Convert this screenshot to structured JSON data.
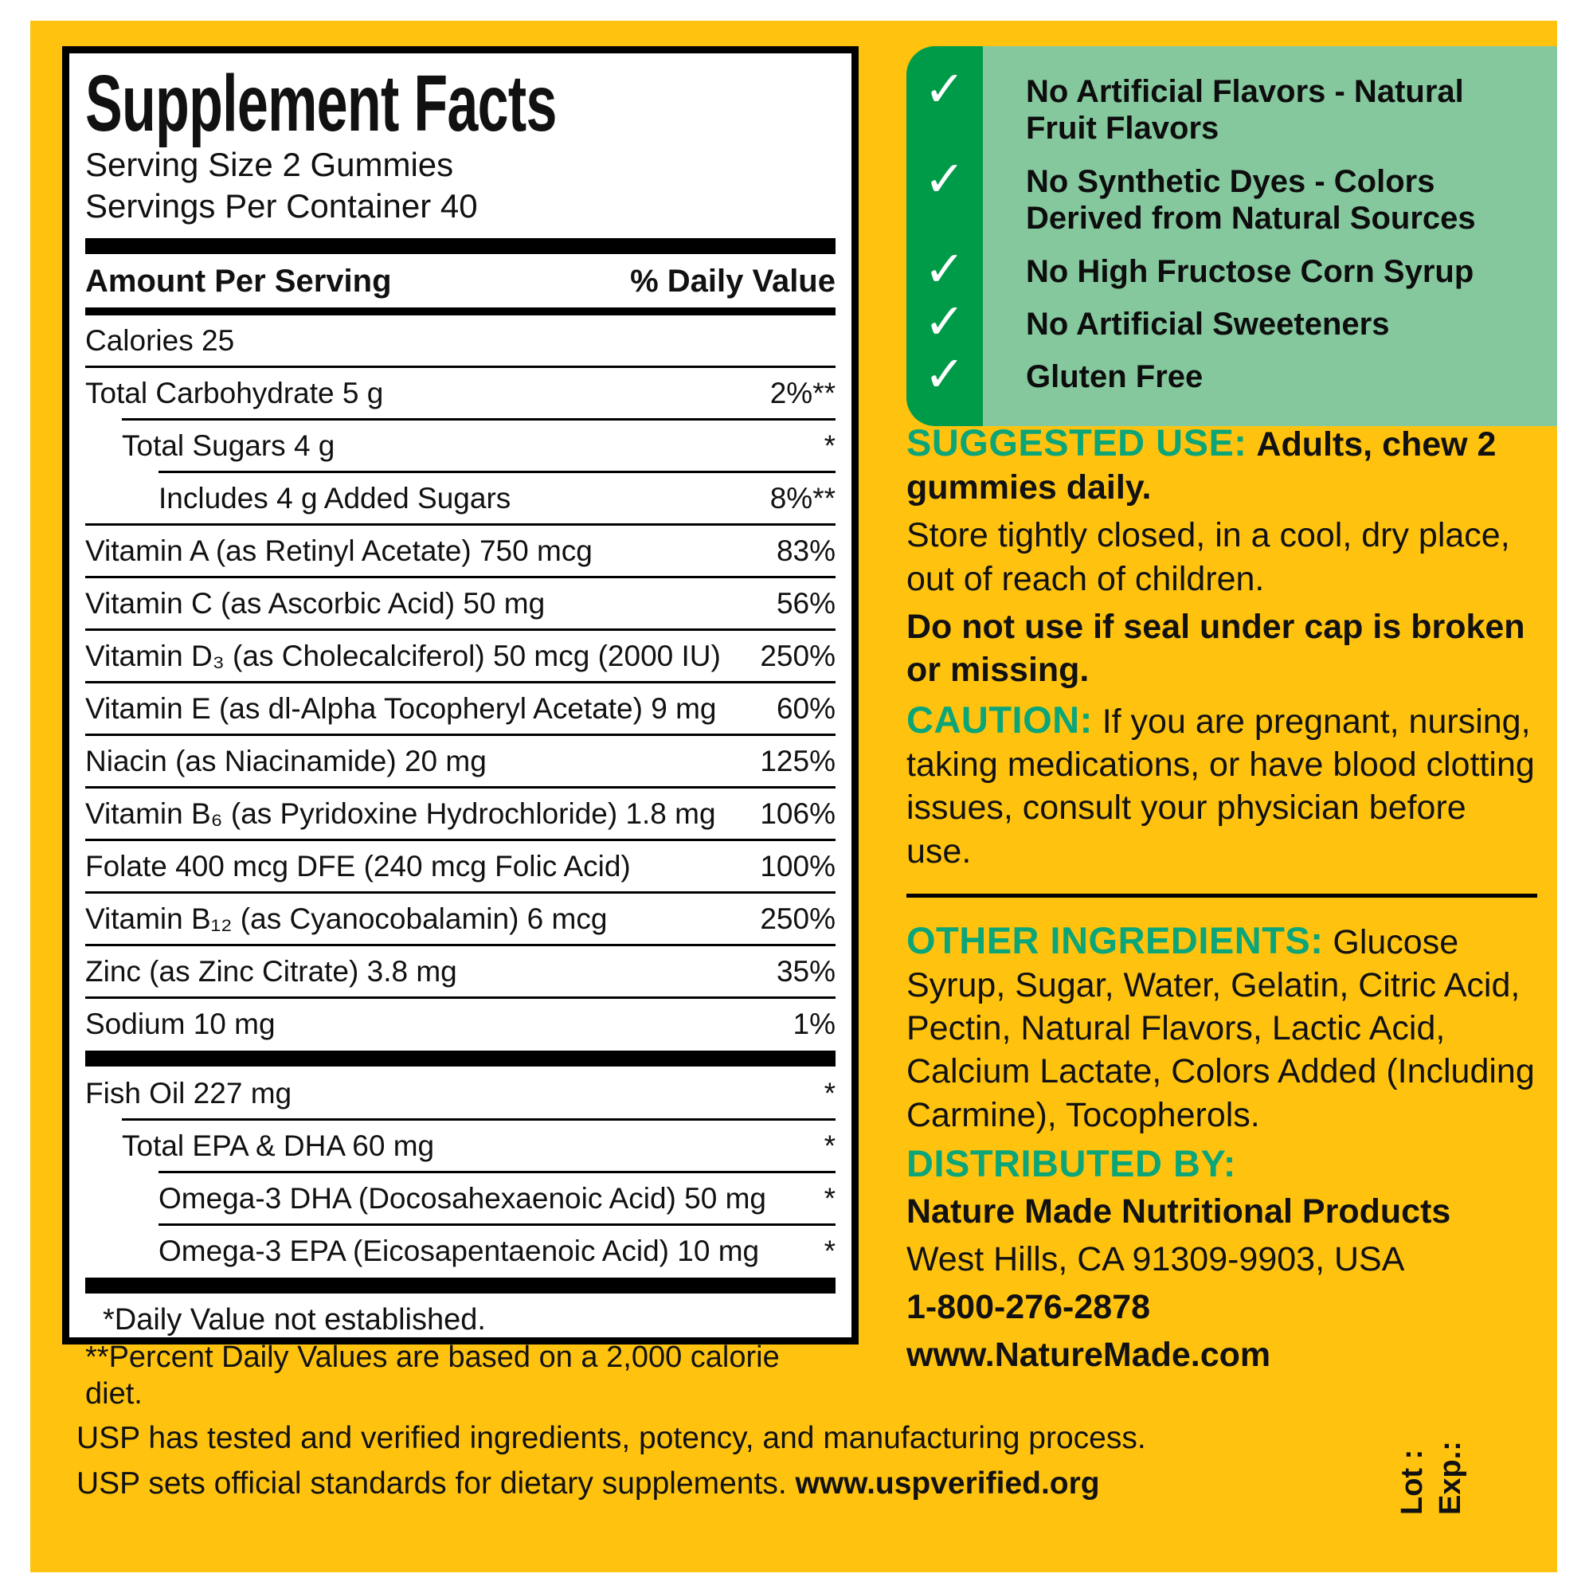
{
  "colors": {
    "label_yellow": "#FFC30F",
    "green_dark": "#009B48",
    "green_light": "#85C89E",
    "green_heading": "#0CA578",
    "panel_border": "#000000",
    "panel_bg": "#FFFFFF",
    "text_black": "#111111",
    "check_white": "#FFFFFF"
  },
  "supplement_facts": {
    "title": "Supplement Facts",
    "serving_size": "Serving Size 2 Gummies",
    "servings_per_container": "Servings Per Container 40",
    "col_amount": "Amount Per Serving",
    "col_dv": "% Daily Value",
    "rows": [
      {
        "label": "Calories  25",
        "dv": "",
        "indent": 0
      },
      {
        "label": "Total Carbohydrate  5 g",
        "dv": "2%**",
        "indent": 0
      },
      {
        "label": "Total Sugars  4 g",
        "dv": "*",
        "indent": 1
      },
      {
        "label": "Includes  4 g Added Sugars",
        "dv": "8%**",
        "indent": 2
      },
      {
        "label": "Vitamin A (as Retinyl Acetate)  750 mcg",
        "dv": "83%",
        "indent": 0
      },
      {
        "label": "Vitamin C (as Ascorbic Acid)  50 mg",
        "dv": "56%",
        "indent": 0
      },
      {
        "label": "Vitamin D₃ (as Cholecalciferol)  50 mcg (2000 IU)",
        "dv": "250%",
        "indent": 0
      },
      {
        "label": "Vitamin E (as dl-Alpha Tocopheryl Acetate)  9 mg",
        "dv": "60%",
        "indent": 0
      },
      {
        "label": "Niacin (as Niacinamide)  20 mg",
        "dv": "125%",
        "indent": 0
      },
      {
        "label": "Vitamin B₆ (as Pyridoxine Hydrochloride)  1.8 mg",
        "dv": "106%",
        "indent": 0
      },
      {
        "label": "Folate  400 mcg DFE (240 mcg Folic Acid)",
        "dv": "100%",
        "indent": 0
      },
      {
        "label": "Vitamin B₁₂ (as Cyanocobalamin)  6 mcg",
        "dv": "250%",
        "indent": 0
      },
      {
        "label": "Zinc (as Zinc Citrate)  3.8 mg",
        "dv": "35%",
        "indent": 0
      },
      {
        "label": "Sodium  10 mg",
        "dv": "1%",
        "indent": 0
      },
      {
        "label": "Fish Oil  227 mg",
        "dv": "*",
        "indent": 0,
        "bar_before": true
      },
      {
        "label": "Total EPA & DHA  60 mg",
        "dv": "*",
        "indent": 1
      },
      {
        "label": "Omega-3 DHA (Docosahexaenoic Acid)  50 mg",
        "dv": "*",
        "indent": 2
      },
      {
        "label": "Omega-3 EPA (Eicosapentaenoic Acid)  10 mg",
        "dv": "*",
        "indent": 2
      }
    ],
    "footnotes": {
      "fn1": "*Daily Value not established.",
      "fn2": "**Percent Daily Values are based on a 2,000 calorie diet."
    }
  },
  "claims": {
    "checkmark": "✓",
    "items": [
      "No Artificial Flavors - Natural Fruit Flavors",
      "No Synthetic Dyes - Colors Derived from Natural Sources",
      "No High Fructose Corn Syrup",
      "No Artificial Sweeteners",
      "Gluten Free"
    ]
  },
  "sections": {
    "suggested_use": {
      "heading": "SUGGESTED USE:",
      "bold_intro": "Adults, chew 2 gummies daily.",
      "body": "Store tightly closed, in a cool, dry place, out of reach of children.",
      "bold_note": "Do not use if seal under cap is broken or missing."
    },
    "caution": {
      "heading": "CAUTION:",
      "body": "If you are pregnant, nursing, taking medications, or have blood clotting issues, consult your physician before use."
    },
    "other_ingredients": {
      "heading": "OTHER INGREDIENTS:",
      "body": "Glucose Syrup, Sugar, Water, Gelatin, Citric Acid, Pectin, Natural Flavors, Lactic Acid, Calcium Lactate, Colors Added (Including Carmine), Tocopherols."
    },
    "distributed_by": {
      "heading": "DISTRIBUTED BY:",
      "company": "Nature Made Nutritional Products",
      "address": "West Hills, CA 91309-9903, USA",
      "phone": "1-800-276-2878",
      "website": "www.NatureMade.com"
    }
  },
  "footer": {
    "usp_line1": "USP has tested and verified ingredients, potency, and manufacturing process.",
    "usp_line2": "USP sets official standards for dietary supplements.",
    "usp_url": "www.uspverified.org",
    "lot_label": "Lot :",
    "exp_label": "Exp.:"
  }
}
